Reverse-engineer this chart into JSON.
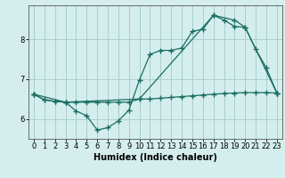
{
  "xlabel": "Humidex (Indice chaleur)",
  "bg_color": "#d4eeee",
  "grid_color": "#aacece",
  "line_color": "#1a6e60",
  "xlim": [
    -0.5,
    23.5
  ],
  "ylim": [
    5.5,
    8.85
  ],
  "yticks": [
    6,
    7,
    8
  ],
  "xticks": [
    0,
    1,
    2,
    3,
    4,
    5,
    6,
    7,
    8,
    9,
    10,
    11,
    12,
    13,
    14,
    15,
    16,
    17,
    18,
    19,
    20,
    21,
    22,
    23
  ],
  "series1_x": [
    0,
    1,
    2,
    3,
    4,
    5,
    6,
    7,
    8,
    9,
    10,
    11,
    12,
    13,
    14,
    15,
    16,
    17,
    18,
    19,
    20,
    21,
    22,
    23
  ],
  "series1_y": [
    6.62,
    6.48,
    6.44,
    6.42,
    6.42,
    6.42,
    6.42,
    6.42,
    6.42,
    6.42,
    6.5,
    6.5,
    6.52,
    6.54,
    6.56,
    6.58,
    6.6,
    6.62,
    6.64,
    6.65,
    6.66,
    6.66,
    6.66,
    6.65
  ],
  "series2_x": [
    0,
    1,
    2,
    3,
    4,
    5,
    6,
    7,
    8,
    9,
    10,
    11,
    12,
    13,
    14,
    15,
    16,
    17,
    18,
    19,
    20,
    21,
    22,
    23
  ],
  "series2_y": [
    6.62,
    6.48,
    6.44,
    6.42,
    6.2,
    6.08,
    5.72,
    5.78,
    5.95,
    6.22,
    6.98,
    7.62,
    7.72,
    7.72,
    7.78,
    8.2,
    8.25,
    8.6,
    8.48,
    8.32,
    8.3,
    7.75,
    7.28,
    6.65
  ],
  "series3_x": [
    0,
    3,
    10,
    17,
    19,
    20,
    23
  ],
  "series3_y": [
    6.62,
    6.42,
    6.5,
    8.6,
    8.48,
    8.3,
    6.65
  ],
  "marker": "+",
  "marker_size": 4,
  "marker_edge_width": 1.0,
  "line_width": 0.9,
  "xlabel_fontsize": 7,
  "tick_fontsize": 6,
  "spine_color": "#555555",
  "title_fontsize": 7
}
